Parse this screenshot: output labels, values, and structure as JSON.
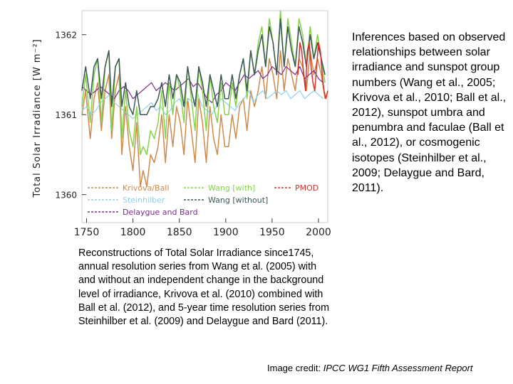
{
  "side_text": "Inferences based on observed relationships between solar irradiance and sunspot group numbers (Wang et al., 2005; Krivova et al., 2010; Ball et al., 2012), sunspot umbra and penumbra and faculae (Ball et al., 2012), or cosmogenic isotopes (Steinhilber et al., 2009; Delaygue and Bard, 2011).",
  "caption": "Reconstructions of Total Solar Irradiance since1745, annual resolution series from Wang et al. (2005) with and without an independent change in the background level of irradiance, Krivova et al. (2010) combined with Ball et al. (2012), and 5-year time resolution series from Steinhilber et al. (2009) and Delaygue and Bard (2011).",
  "credit": {
    "prefix": "Image credit: ",
    "source": "IPCC WG1 Fifth Assessment Report"
  },
  "chart_data": {
    "type": "line",
    "title": "",
    "ylabel": "Total Solar Irradiance [W m⁻²]",
    "xlabel": "",
    "xlim": [
      1745,
      2010
    ],
    "ylim": [
      1359.65,
      1362.3
    ],
    "x_ticks": [
      1750,
      1800,
      1850,
      1900,
      1950,
      2000
    ],
    "y_ticks": [
      1360,
      1361,
      1362
    ],
    "grid": false,
    "legend_position": "bottom-left",
    "series": [
      {
        "name": "Krivova/Ball",
        "color": "#cd8a4a",
        "x": [
          1745,
          1749,
          1754,
          1758,
          1762,
          1766,
          1770,
          1774,
          1777,
          1781,
          1785,
          1788,
          1792,
          1796,
          1800,
          1804,
          1808,
          1811,
          1815,
          1819,
          1823,
          1827,
          1831,
          1835,
          1839,
          1843,
          1847,
          1851,
          1855,
          1859,
          1863,
          1867,
          1871,
          1875,
          1879,
          1883,
          1887,
          1891,
          1895,
          1899,
          1903,
          1907,
          1911,
          1915,
          1919,
          1923,
          1927,
          1931,
          1935,
          1939,
          1943,
          1947,
          1951,
          1955,
          1959,
          1963,
          1967,
          1971,
          1975,
          1979,
          1983,
          1987,
          1991,
          1995,
          1999,
          2003,
          2007
        ],
        "y": [
          1361.0,
          1361.3,
          1360.7,
          1361.2,
          1361.4,
          1360.8,
          1361.3,
          1361.5,
          1360.7,
          1361.3,
          1361.5,
          1360.5,
          1361.1,
          1360.6,
          1360.3,
          1360.9,
          1360.1,
          1360.3,
          1360.1,
          1360.5,
          1360.4,
          1360.6,
          1361.0,
          1360.4,
          1361.0,
          1360.6,
          1361.1,
          1360.9,
          1360.5,
          1361.2,
          1360.8,
          1360.4,
          1361.2,
          1360.9,
          1360.4,
          1361.1,
          1360.7,
          1360.5,
          1361.0,
          1360.6,
          1360.6,
          1361.0,
          1360.7,
          1361.1,
          1361.2,
          1360.8,
          1361.3,
          1361.1,
          1361.3,
          1361.6,
          1361.2,
          1361.7,
          1361.5,
          1361.2,
          1361.8,
          1361.3,
          1361.7,
          1361.5,
          1361.3,
          1361.7,
          1361.6,
          1361.3,
          1361.8,
          1361.5,
          1361.7,
          1361.5,
          1361.2
        ]
      },
      {
        "name": "Steinhilber",
        "color": "#8fd0ee",
        "x": [
          1745,
          1750,
          1755,
          1760,
          1765,
          1770,
          1775,
          1780,
          1785,
          1790,
          1795,
          1800,
          1805,
          1810,
          1815,
          1820,
          1825,
          1830,
          1835,
          1840,
          1845,
          1850,
          1855,
          1860,
          1865,
          1870,
          1875,
          1880,
          1885,
          1890,
          1895,
          1900,
          1905,
          1910,
          1915,
          1920,
          1925,
          1930,
          1935,
          1940,
          1945,
          1950,
          1955,
          1960,
          1965,
          1970,
          1975,
          1980,
          1985,
          1990,
          1995,
          2000,
          2005
        ],
        "y": [
          1361.05,
          1361.1,
          1361.0,
          1361.05,
          1361.15,
          1361.2,
          1361.25,
          1361.15,
          1361.1,
          1361.05,
          1361.0,
          1360.95,
          1361.0,
          1361.05,
          1361.1,
          1361.15,
          1361.05,
          1361.1,
          1361.0,
          1361.05,
          1361.15,
          1361.2,
          1361.1,
          1361.2,
          1361.15,
          1361.25,
          1361.1,
          1361.05,
          1361.0,
          1361.1,
          1361.2,
          1361.15,
          1361.1,
          1361.05,
          1361.15,
          1361.2,
          1361.3,
          1361.15,
          1361.25,
          1361.3,
          1361.2,
          1361.25,
          1361.3,
          1361.25,
          1361.3,
          1361.2,
          1361.25,
          1361.3,
          1361.2,
          1361.25,
          1361.3,
          1361.25,
          1361.2
        ]
      },
      {
        "name": "Delaygue and Bard",
        "color": "#7a2c8c",
        "x": [
          1745,
          1750,
          1755,
          1760,
          1765,
          1770,
          1775,
          1780,
          1785,
          1790,
          1795,
          1800,
          1805,
          1810,
          1815,
          1820,
          1825,
          1830,
          1835,
          1840,
          1845,
          1850,
          1855,
          1860,
          1865,
          1870,
          1875,
          1880,
          1885,
          1890,
          1895,
          1900,
          1905,
          1910,
          1915,
          1920,
          1925,
          1930,
          1935,
          1940,
          1945,
          1950,
          1955,
          1960,
          1965,
          1970,
          1975,
          1980,
          1985,
          1990,
          1995,
          2000,
          2005
        ],
        "y": [
          1361.35,
          1361.3,
          1361.25,
          1361.3,
          1361.35,
          1361.3,
          1361.25,
          1361.2,
          1361.3,
          1361.35,
          1361.3,
          1361.2,
          1361.25,
          1361.3,
          1361.35,
          1361.4,
          1361.3,
          1361.35,
          1361.4,
          1361.35,
          1361.3,
          1361.35,
          1361.4,
          1361.45,
          1361.35,
          1361.4,
          1361.3,
          1361.2,
          1361.15,
          1361.25,
          1361.3,
          1361.4,
          1361.35,
          1361.3,
          1361.4,
          1361.5,
          1361.45,
          1361.5,
          1361.55,
          1361.45,
          1361.5,
          1361.6,
          1361.55,
          1361.5,
          1361.6,
          1361.55,
          1361.5,
          1361.6,
          1361.45,
          1361.5,
          1361.55,
          1361.45,
          1361.4
        ]
      },
      {
        "name": "Wang [with]",
        "color": "#86d24a",
        "x": [
          1745,
          1749,
          1754,
          1758,
          1762,
          1766,
          1770,
          1774,
          1777,
          1781,
          1785,
          1788,
          1792,
          1796,
          1800,
          1804,
          1808,
          1811,
          1815,
          1819,
          1823,
          1827,
          1831,
          1835,
          1839,
          1843,
          1847,
          1851,
          1855,
          1859,
          1863,
          1867,
          1871,
          1875,
          1879,
          1883,
          1887,
          1891,
          1895,
          1899,
          1903,
          1907,
          1911,
          1915,
          1919,
          1923,
          1927,
          1931,
          1935,
          1939,
          1943,
          1947,
          1951,
          1955,
          1959,
          1963,
          1967,
          1971,
          1975,
          1979,
          1983,
          1987,
          1991,
          1995,
          1999,
          2003,
          2007
        ],
        "y": [
          1361.1,
          1361.5,
          1360.9,
          1361.5,
          1361.7,
          1360.9,
          1361.6,
          1361.8,
          1360.8,
          1361.6,
          1361.7,
          1360.7,
          1361.3,
          1360.8,
          1360.6,
          1361.1,
          1360.5,
          1360.6,
          1360.5,
          1360.8,
          1360.7,
          1360.9,
          1361.3,
          1360.7,
          1361.4,
          1361.0,
          1361.5,
          1361.3,
          1360.9,
          1361.6,
          1361.2,
          1360.8,
          1361.6,
          1361.3,
          1360.8,
          1361.5,
          1361.1,
          1360.9,
          1361.4,
          1361.0,
          1361.0,
          1361.4,
          1361.1,
          1361.5,
          1361.7,
          1361.2,
          1361.8,
          1361.5,
          1361.9,
          1362.1,
          1361.6,
          1362.2,
          1361.9,
          1361.5,
          1362.3,
          1361.6,
          1362.2,
          1361.9,
          1361.6,
          1362.2,
          1362.0,
          1361.6,
          1362.1,
          1361.7,
          1362.0,
          1361.7,
          1361.4
        ]
      },
      {
        "name": "Wang [without]",
        "color": "#3c5658",
        "x": [
          1745,
          1749,
          1754,
          1758,
          1762,
          1766,
          1770,
          1774,
          1777,
          1781,
          1785,
          1788,
          1792,
          1796,
          1800,
          1804,
          1808,
          1811,
          1815,
          1819,
          1823,
          1827,
          1831,
          1835,
          1839,
          1843,
          1847,
          1851,
          1855,
          1859,
          1863,
          1867,
          1871,
          1875,
          1879,
          1883,
          1887,
          1891,
          1895,
          1899,
          1903,
          1907,
          1911,
          1915,
          1919,
          1923,
          1927,
          1931,
          1935,
          1939,
          1943,
          1947,
          1951,
          1955,
          1959,
          1963,
          1967,
          1971,
          1975,
          1979,
          1983,
          1987,
          1991,
          1995,
          1999,
          2003,
          2007
        ],
        "y": [
          1361.3,
          1361.6,
          1361.2,
          1361.6,
          1361.7,
          1361.2,
          1361.6,
          1361.8,
          1361.1,
          1361.6,
          1361.7,
          1361.1,
          1361.4,
          1361.1,
          1361.0,
          1361.3,
          1361.0,
          1361.0,
          1361.0,
          1361.1,
          1361.1,
          1361.2,
          1361.4,
          1361.1,
          1361.5,
          1361.2,
          1361.5,
          1361.4,
          1361.1,
          1361.6,
          1361.3,
          1361.1,
          1361.6,
          1361.4,
          1361.1,
          1361.5,
          1361.3,
          1361.1,
          1361.5,
          1361.2,
          1361.2,
          1361.5,
          1361.2,
          1361.5,
          1361.7,
          1361.3,
          1361.8,
          1361.5,
          1361.8,
          1362.0,
          1361.6,
          1362.1,
          1361.9,
          1361.5,
          1362.2,
          1361.6,
          1362.1,
          1361.8,
          1361.6,
          1362.1,
          1361.9,
          1361.6,
          1362.0,
          1361.7,
          1361.9,
          1361.7,
          1361.5
        ]
      },
      {
        "name": "PMOD",
        "color": "#d9302a",
        "x": [
          1978,
          1980,
          1982,
          1984,
          1986,
          1988,
          1990,
          1992,
          1994,
          1996,
          1998,
          2000,
          2002,
          2004,
          2006,
          2008,
          2010
        ],
        "y": [
          1361.5,
          1361.9,
          1361.8,
          1361.5,
          1361.3,
          1361.8,
          1361.9,
          1361.6,
          1361.4,
          1361.3,
          1361.6,
          1361.9,
          1361.8,
          1361.5,
          1361.3,
          1361.2,
          1361.3
        ]
      }
    ]
  }
}
